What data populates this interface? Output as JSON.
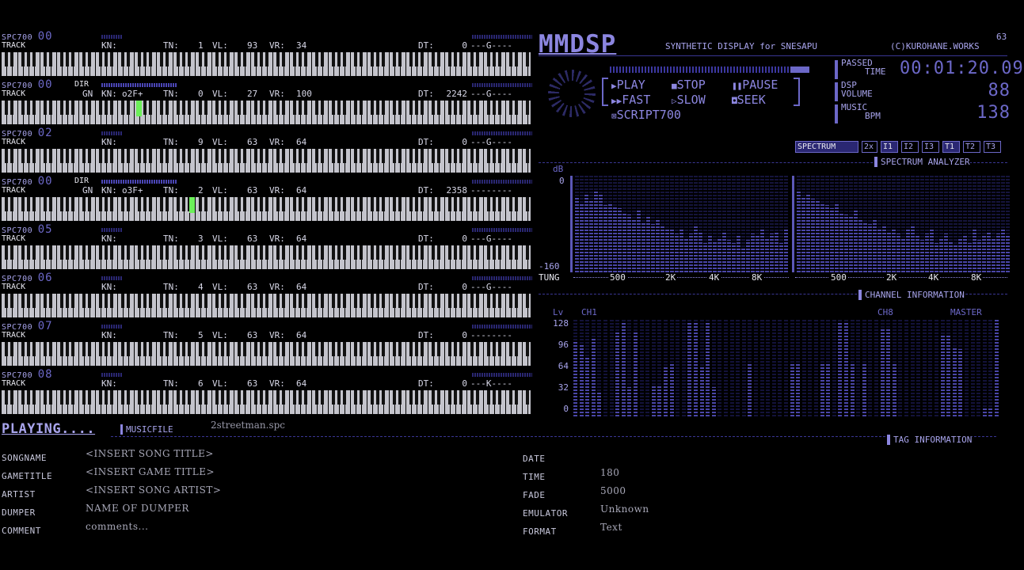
{
  "tracks": [
    {
      "spc": "SPC700",
      "ch": "00",
      "track": "TRACK",
      "dir": "",
      "gn": "",
      "kn_label": "KN:",
      "kn": "",
      "tn_label": "TN:",
      "tn": "1",
      "vl_label": "VL:",
      "vl": "93",
      "vr_label": "VR:",
      "vr": "34",
      "dt_label": "DT:",
      "dt": "0",
      "tail": "---G----",
      "hit": null
    },
    {
      "spc": "SPC700",
      "ch": "00",
      "track": "TRACK",
      "dir": "DIR",
      "gn": "GN",
      "kn_label": "KN:",
      "kn": "o2F+",
      "tn_label": "TN:",
      "tn": "0",
      "vl_label": "VL:",
      "vl": "27",
      "vr_label": "VR:",
      "vr": "100",
      "dt_label": "DT:",
      "dt": "2242",
      "tail": "---G----",
      "hit": 0.255
    },
    {
      "spc": "SPC700",
      "ch": "02",
      "track": "TRACK",
      "dir": "",
      "gn": "",
      "kn_label": "KN:",
      "kn": "",
      "tn_label": "TN:",
      "tn": "9",
      "vl_label": "VL:",
      "vl": "63",
      "vr_label": "VR:",
      "vr": "64",
      "dt_label": "DT:",
      "dt": "0",
      "tail": "---G----",
      "hit": null
    },
    {
      "spc": "SPC700",
      "ch": "00",
      "track": "TRACK",
      "dir": "DIR",
      "gn": "GN",
      "kn_label": "KN:",
      "kn": "o3F+",
      "tn_label": "TN:",
      "tn": "2",
      "vl_label": "VL:",
      "vl": "63",
      "vr_label": "VR:",
      "vr": "64",
      "dt_label": "DT:",
      "dt": "2358",
      "tail": "--------",
      "hit": 0.355
    },
    {
      "spc": "SPC700",
      "ch": "05",
      "track": "TRACK",
      "dir": "",
      "gn": "",
      "kn_label": "KN:",
      "kn": "",
      "tn_label": "TN:",
      "tn": "3",
      "vl_label": "VL:",
      "vl": "63",
      "vr_label": "VR:",
      "vr": "64",
      "dt_label": "DT:",
      "dt": "0",
      "tail": "---G----",
      "hit": null
    },
    {
      "spc": "SPC700",
      "ch": "06",
      "track": "TRACK",
      "dir": "",
      "gn": "",
      "kn_label": "KN:",
      "kn": "",
      "tn_label": "TN:",
      "tn": "4",
      "vl_label": "VL:",
      "vl": "63",
      "vr_label": "VR:",
      "vr": "64",
      "dt_label": "DT:",
      "dt": "0",
      "tail": "---G----",
      "hit": null
    },
    {
      "spc": "SPC700",
      "ch": "07",
      "track": "TRACK",
      "dir": "",
      "gn": "",
      "kn_label": "KN:",
      "kn": "",
      "tn_label": "TN:",
      "tn": "5",
      "vl_label": "VL:",
      "vl": "63",
      "vr_label": "VR:",
      "vr": "64",
      "dt_label": "DT:",
      "dt": "0",
      "tail": "--------",
      "hit": null
    },
    {
      "spc": "SPC700",
      "ch": "08",
      "track": "TRACK",
      "dir": "",
      "gn": "",
      "kn_label": "KN:",
      "kn": "",
      "tn_label": "TN:",
      "tn": "6",
      "vl_label": "VL:",
      "vl": "63",
      "vr_label": "VR:",
      "vr": "64",
      "dt_label": "DT:",
      "dt": "0",
      "tail": "---K----",
      "hit": null
    }
  ],
  "header": {
    "logo": "MMDSP",
    "subtitle": "SYNTHETIC DISPLAY for SNESAPU",
    "copyright": "(C)KUROHANE.WORKS",
    "counter": "63"
  },
  "controls": {
    "play": "PLAY",
    "stop": "STOP",
    "pause": "PAUSE",
    "fast": "FAST",
    "slow": "SLOW",
    "seek": "SEEK",
    "script": "SCRIPT700"
  },
  "stats": {
    "passed_label_1": "PASSED",
    "passed_label_2": "TIME",
    "passed_value": "00:01:20.09",
    "dsp_label_1": "DSP",
    "dsp_label_2": "VOLUME",
    "dsp_value": "88",
    "music_label_1": "MUSIC",
    "music_label_2": "BPM",
    "music_value": "138"
  },
  "spectrum": {
    "tabs": [
      "SPECTRUM",
      "2x",
      "I1",
      "I2",
      "I3",
      "T1",
      "T2",
      "T3"
    ],
    "active_tabs": [
      0,
      2,
      5
    ],
    "title": "SPECTRUM ANALYZER",
    "db_label": "dB",
    "top_tick": "0",
    "bottom_tick": "-160",
    "mode": "TUNG",
    "freq_labels": [
      "500",
      "2K",
      "4K",
      "8K"
    ],
    "left_levels": [
      0.78,
      0.72,
      0.82,
      0.75,
      0.84,
      0.8,
      0.7,
      0.72,
      0.68,
      0.66,
      0.62,
      0.6,
      0.56,
      0.64,
      0.52,
      0.58,
      0.5,
      0.54,
      0.48,
      0.44,
      0.46,
      0.4,
      0.46,
      0.36,
      0.4,
      0.48,
      0.42,
      0.3,
      0.38,
      0.32,
      0.36,
      0.42,
      0.34,
      0.3,
      0.38,
      0.26,
      0.34,
      0.4,
      0.38,
      0.44,
      0.36,
      0.4,
      0.42,
      0.3,
      0.44
    ],
    "right_levels": [
      0.84,
      0.78,
      0.82,
      0.76,
      0.74,
      0.72,
      0.7,
      0.66,
      0.72,
      0.62,
      0.6,
      0.58,
      0.64,
      0.54,
      0.52,
      0.5,
      0.56,
      0.46,
      0.48,
      0.42,
      0.46,
      0.4,
      0.36,
      0.44,
      0.48,
      0.38,
      0.34,
      0.4,
      0.44,
      0.3,
      0.36,
      0.4,
      0.32,
      0.28,
      0.36,
      0.38,
      0.3,
      0.44,
      0.34,
      0.38,
      0.42,
      0.36,
      0.4,
      0.44,
      0.38
    ]
  },
  "channel_info": {
    "title": "CHANNEL INFORMATION",
    "lv": "Lv",
    "ch1": "CH1",
    "ch8": "CH8",
    "master": "MASTER",
    "ticks": [
      "128",
      "96",
      "64",
      "32",
      "0"
    ],
    "levels": [
      0.78,
      0.74,
      0.62,
      0.8,
      0.26,
      0.0,
      0.0,
      0.88,
      0.98,
      0.3,
      0.88,
      0.0,
      0.0,
      0.32,
      0.32,
      0.52,
      0.54,
      0.0,
      0.0,
      0.98,
      0.98,
      0.52,
      0.98,
      0.3,
      0.0,
      0.0,
      0.0,
      0.0,
      0.0,
      0.54,
      0.0,
      0.0,
      0.0,
      0.0,
      0.0,
      0.0,
      0.54,
      0.54,
      0.0,
      0.0,
      0.0,
      0.54,
      0.54,
      0.0,
      0.98,
      0.98,
      0.54,
      0.0,
      0.54,
      0.0,
      0.0,
      0.9,
      0.9,
      0.54,
      0.0,
      0.0,
      0.0,
      0.0,
      0.0,
      0.0,
      0.0,
      0.84,
      0.84,
      0.72,
      0.7,
      0.0,
      0.0,
      0.0,
      0.08,
      0.1,
      1.0
    ]
  },
  "playing": {
    "status": "PLAYING....",
    "musicfile_label": "MUSICFILE",
    "musicfile": "2streetman.spc"
  },
  "tags": {
    "title": "TAG INFORMATION",
    "songname_label": "SONGNAME",
    "songname": "<INSERT SONG TITLE>",
    "gametitle_label": "GAMETITLE",
    "gametitle": "<INSERT GAME TITLE>",
    "artist_label": "ARTIST",
    "artist": "<INSERT SONG ARTIST>",
    "dumper_label": "DUMPER",
    "dumper": "NAME OF DUMPER",
    "comment_label": "COMMENT",
    "comment": "comments...",
    "date_label": "DATE",
    "date": "",
    "time_label": "TIME",
    "time": "180",
    "fade_label": "FADE",
    "fade": "5000",
    "emulator_label": "EMULATOR",
    "emulator": "Unknown",
    "format_label": "FORMAT",
    "format": "Text"
  }
}
